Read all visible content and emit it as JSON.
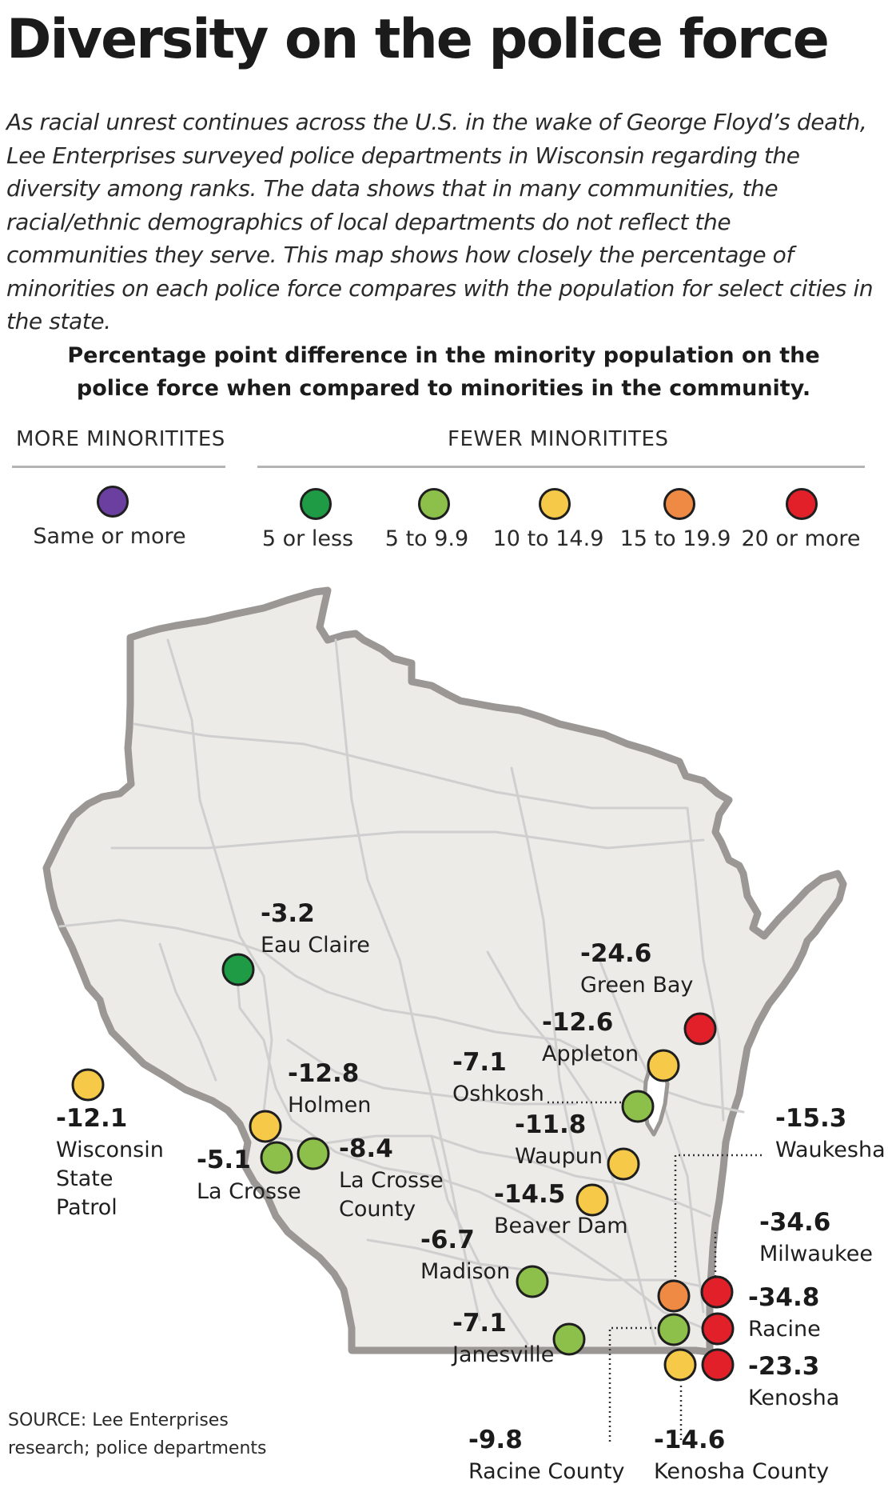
{
  "title": "Diversity on the police force",
  "intro": "As racial unrest continues across the U.S. in the wake of George Floyd’s death, Lee Enterprises surveyed police departments in Wisconsin regarding the diversity among ranks. The data shows that in many communities, the racial/ethnic demographics of local departments do not reflect the communities they serve. This map shows how closely the percentage of minorities on each police force compares with the population for select cities in the state.",
  "subhead": "Percentage point difference in the minority population on the police force when compared to minorities in the community.",
  "legend": {
    "more_header": "MORE MINORITITES",
    "fewer_header": "FEWER MINORITITES",
    "items": [
      {
        "label": "Same or more",
        "color": "#6b3fa0"
      },
      {
        "label": "5 or less",
        "color": "#1f9a45"
      },
      {
        "label": "5 to 9.9",
        "color": "#8dc04a"
      },
      {
        "label": "10 to 14.9",
        "color": "#f7c948"
      },
      {
        "label": "15 to 19.9",
        "color": "#ef8a45"
      },
      {
        "label": "20 or more",
        "color": "#e2202a"
      }
    ]
  },
  "cities": [
    {
      "value": "-3.2",
      "name": "Eau Claire",
      "color": "#1f9a45"
    },
    {
      "value": "-24.6",
      "name": "Green Bay",
      "color": "#e2202a"
    },
    {
      "value": "-12.6",
      "name": "Appleton",
      "color": "#f7c948"
    },
    {
      "value": "-7.1",
      "name": "Oshkosh",
      "color": "#8dc04a"
    },
    {
      "value": "-12.8",
      "name": "Holmen",
      "color": "#f7c948"
    },
    {
      "value": "-12.1",
      "name": [
        "Wisconsin",
        "State",
        "Patrol"
      ],
      "color": "#f7c948"
    },
    {
      "value": "-5.1",
      "name": "La Crosse",
      "color": "#8dc04a"
    },
    {
      "value": "-8.4",
      "name": [
        "La Crosse",
        "County"
      ],
      "color": "#8dc04a"
    },
    {
      "value": "-11.8",
      "name": "Waupun",
      "color": "#f7c948"
    },
    {
      "value": "-14.5",
      "name": "Beaver Dam",
      "color": "#f7c948"
    },
    {
      "value": "-6.7",
      "name": "Madison",
      "color": "#8dc04a"
    },
    {
      "value": "-7.1",
      "name": "Janesville",
      "color": "#8dc04a"
    },
    {
      "value": "-15.3",
      "name": "Waukesha",
      "color": "#ef8a45"
    },
    {
      "value": "-34.6",
      "name": "Milwaukee",
      "color": "#e2202a"
    },
    {
      "value": "-34.8",
      "name": "Racine",
      "color": "#e2202a"
    },
    {
      "value": "-23.3",
      "name": "Kenosha",
      "color": "#e2202a"
    },
    {
      "value": "-9.8",
      "name": "Racine County",
      "color": "#8dc04a"
    },
    {
      "value": "-14.6",
      "name": "Kenosha County",
      "color": "#f7c948"
    }
  ],
  "source": "SOURCE: Lee Enterprises research; police departments"
}
